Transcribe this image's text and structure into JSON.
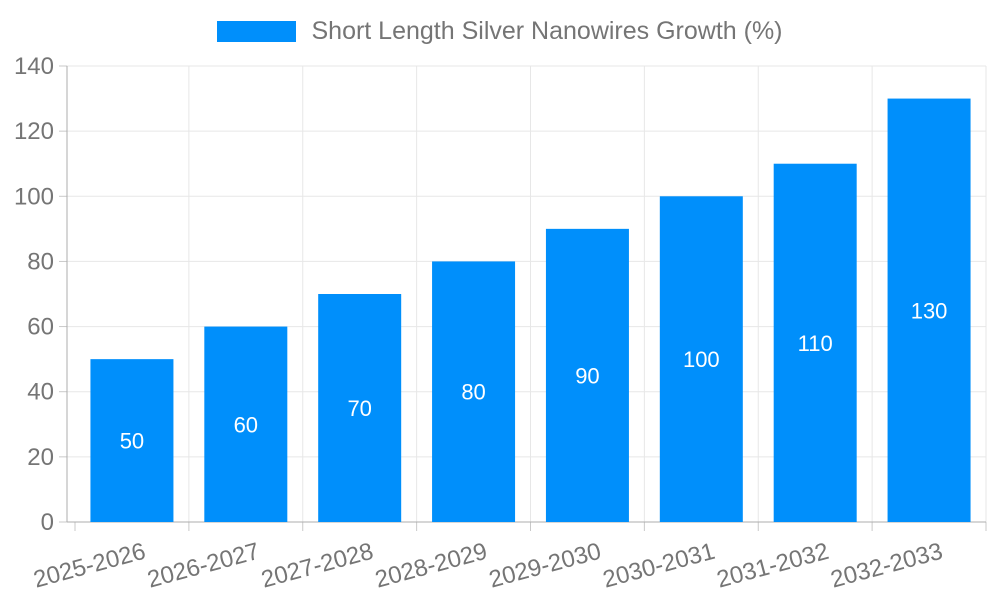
{
  "chart_data": {
    "type": "bar",
    "title": "Short Length Silver Nanowires Growth (%)",
    "legend_label": "Short Length Silver Nanowires Growth (%)",
    "legend_position": "top",
    "categories": [
      "2025-2026",
      "2026-2027",
      "2027-2028",
      "2028-2029",
      "2029-2030",
      "2030-2031",
      "2031-2032",
      "2032-2033"
    ],
    "values": [
      50,
      60,
      70,
      80,
      90,
      100,
      110,
      130
    ],
    "show_bar_labels": true,
    "xlabel": "",
    "ylabel": "",
    "ylim": [
      0,
      140
    ],
    "yticks": [
      0,
      20,
      40,
      60,
      80,
      100,
      120,
      140
    ],
    "grid": true,
    "x_label_rotation_deg": -15,
    "colors": {
      "bar": "#008FFB",
      "bar_label": "#FFFFFF",
      "axis_text": "#757575",
      "legend_text": "#757575",
      "grid_line": "#E7E7E7",
      "axis_line": "#ADADAD",
      "tick_line": "#C9C9C9",
      "background": "#FFFFFF"
    }
  }
}
